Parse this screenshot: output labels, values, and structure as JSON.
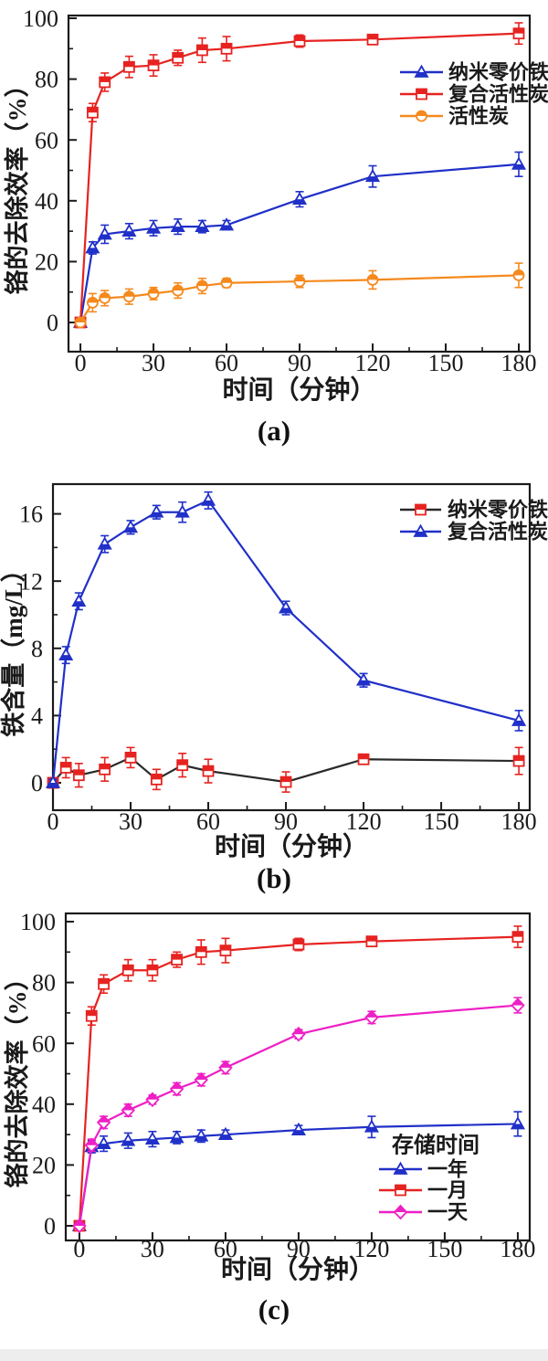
{
  "figure": {
    "description": "Three stacked line charts with error bars",
    "background_color": "#ffffff",
    "axis_color": "#1a1a1a"
  },
  "chart_data": [
    {
      "id": "a",
      "type": "line",
      "panel_label": "(a)",
      "xlabel": "时间（分钟）",
      "ylabel": "铬的去除效率（%）",
      "x": [
        0,
        5,
        10,
        20,
        30,
        40,
        50,
        60,
        90,
        120,
        180
      ],
      "xticks": [
        0,
        30,
        60,
        90,
        120,
        150,
        180
      ],
      "yticks": [
        0,
        20,
        40,
        60,
        80,
        100
      ],
      "x_minor_step": 15,
      "y_minor_step": 10,
      "xlim": [
        -4.9,
        184.5
      ],
      "ylim": [
        -9.6,
        100.9
      ],
      "grid": false,
      "legend_position": "right-upper",
      "legend_title": "",
      "series": [
        {
          "name": "纳米零价铁",
          "marker": "triangle",
          "color": "#2030c8",
          "line_color": "#2030c8",
          "values": [
            0,
            24.5,
            29,
            30,
            31,
            31.5,
            31.5,
            32,
            40.5,
            48,
            52
          ],
          "err": [
            0.5,
            2,
            3,
            2.5,
            2.5,
            2.5,
            2,
            1.5,
            2.5,
            3.5,
            4
          ]
        },
        {
          "name": "复合活性炭",
          "marker": "square",
          "color": "#e62320",
          "line_color": "#e62320",
          "values": [
            0,
            69,
            79,
            84,
            84.5,
            87,
            89.5,
            90,
            92.5,
            93,
            95
          ],
          "err": [
            0.5,
            3,
            3,
            3.5,
            3.5,
            2.5,
            4,
            4,
            2,
            1.5,
            3.5
          ]
        },
        {
          "name": "活性炭",
          "marker": "circle",
          "color": "#f5891d",
          "line_color": "#f5891d",
          "values": [
            0,
            6.5,
            8,
            8.5,
            9.5,
            10.5,
            12,
            13,
            13.5,
            14,
            15.5
          ],
          "err": [
            0.8,
            3,
            2.5,
            2.5,
            2,
            2.5,
            2.5,
            1.5,
            2,
            3,
            4
          ]
        }
      ]
    },
    {
      "id": "b",
      "type": "line",
      "panel_label": "(b)",
      "xlabel": "时间（分钟）",
      "ylabel": "铁含量（mg/L）",
      "x": [
        0,
        5,
        10,
        20,
        30,
        40,
        50,
        60,
        90,
        120,
        180
      ],
      "xticks": [
        0,
        30,
        60,
        90,
        120,
        150,
        180
      ],
      "yticks": [
        0,
        4,
        8,
        12,
        16
      ],
      "x_minor_step": 15,
      "y_minor_step": 2,
      "xlim": [
        0,
        184.2
      ],
      "ylim": [
        -1.63,
        17.77
      ],
      "grid": false,
      "legend_position": "right-upper",
      "legend_title": "",
      "series": [
        {
          "name": "纳米零价铁",
          "marker": "square",
          "color": "#e62320",
          "line_color": "#2a2a2a",
          "values": [
            0,
            0.9,
            0.45,
            0.8,
            1.5,
            0.2,
            1.05,
            0.7,
            0.05,
            1.4,
            1.3
          ],
          "err": [
            0.3,
            0.6,
            0.7,
            0.7,
            0.6,
            0.6,
            0.7,
            0.7,
            0.6,
            0.3,
            0.8
          ]
        },
        {
          "name": "复合活性炭",
          "marker": "triangle",
          "color": "#2030c8",
          "line_color": "#2030c8",
          "values": [
            0,
            7.6,
            10.8,
            14.2,
            15.2,
            16.1,
            16.1,
            16.8,
            10.4,
            6.1,
            3.7
          ],
          "err": [
            0.2,
            0.5,
            0.5,
            0.5,
            0.4,
            0.4,
            0.6,
            0.5,
            0.4,
            0.4,
            0.6
          ]
        }
      ]
    },
    {
      "id": "c",
      "type": "line",
      "panel_label": "(c)",
      "xlabel": "时间（分钟）",
      "ylabel": "铬的去除效率（%）",
      "x": [
        0,
        5,
        10,
        20,
        30,
        40,
        50,
        60,
        90,
        120,
        180
      ],
      "xticks": [
        0,
        30,
        60,
        90,
        120,
        150,
        180
      ],
      "yticks": [
        0,
        20,
        40,
        60,
        80,
        100
      ],
      "x_minor_step": 15,
      "y_minor_step": 10,
      "xlim": [
        -5.6,
        184.9
      ],
      "ylim": [
        -4.8,
        102.7
      ],
      "grid": false,
      "legend_position": "right-lower",
      "legend_title": "存储时间",
      "series": [
        {
          "name": "一年",
          "marker": "triangle",
          "color": "#2030c8",
          "line_color": "#2030c8",
          "values": [
            0,
            26,
            27,
            28,
            28.5,
            29,
            29.5,
            30,
            31.5,
            32.5,
            33.5
          ],
          "err": [
            0.5,
            2,
            2.5,
            2.5,
            2.5,
            2,
            2,
            1.5,
            1.5,
            3.5,
            4
          ]
        },
        {
          "name": "一月",
          "marker": "square",
          "color": "#e62320",
          "line_color": "#e62320",
          "values": [
            0,
            69,
            79.5,
            84,
            84,
            87.5,
            90,
            90.5,
            92.5,
            93.5,
            95
          ],
          "err": [
            0.5,
            3,
            3,
            3.5,
            3.5,
            2.5,
            4,
            4,
            2,
            1.5,
            3.5
          ]
        },
        {
          "name": "一天",
          "marker": "diamond",
          "color": "#ee1fc5",
          "line_color": "#ee1fc5",
          "values": [
            0,
            26.5,
            34,
            38,
            41.5,
            45,
            48,
            52,
            63,
            68.5,
            72.5
          ],
          "err": [
            0.8,
            2,
            2,
            2,
            1.5,
            2,
            2,
            2,
            1.5,
            2,
            2.5
          ]
        }
      ]
    }
  ]
}
